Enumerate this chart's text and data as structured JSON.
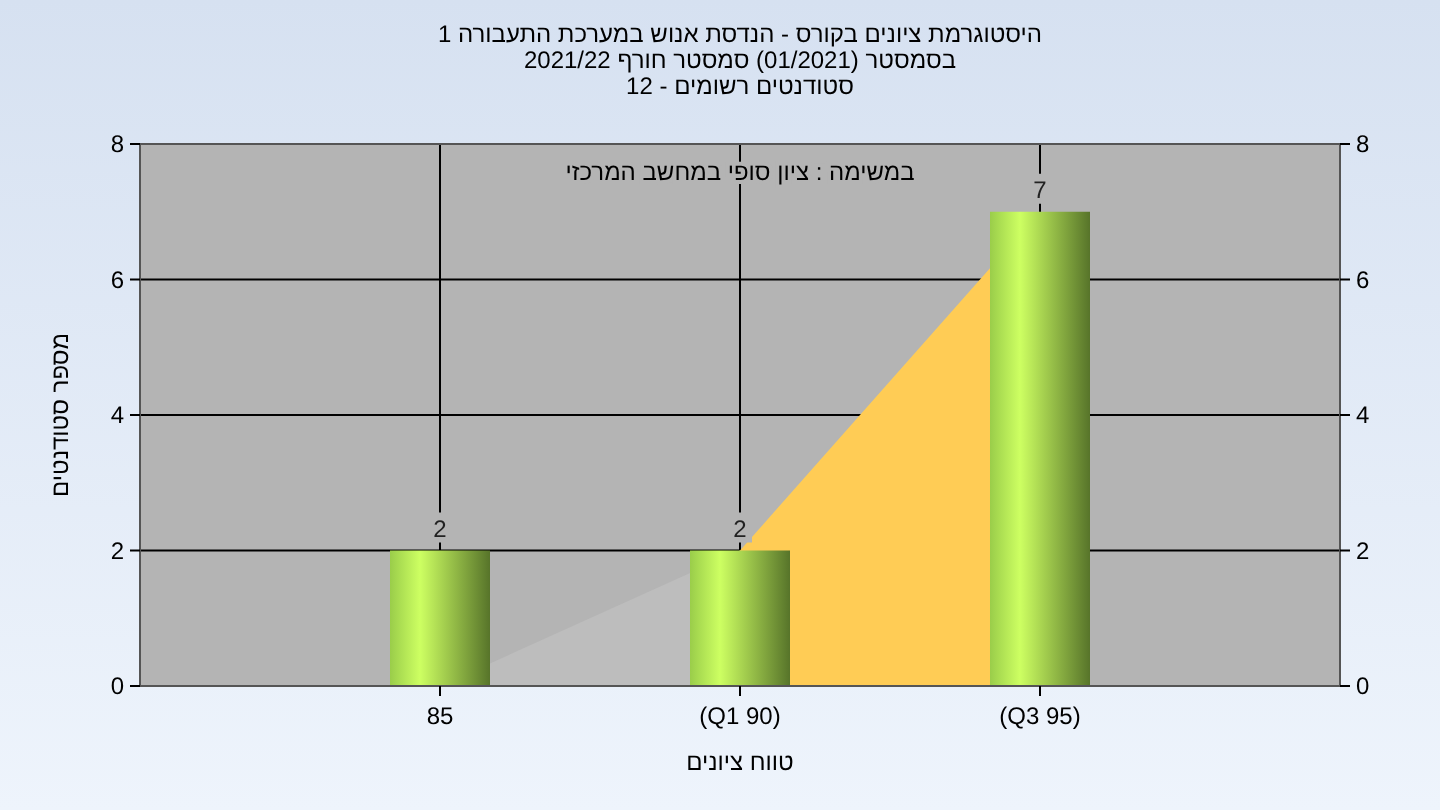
{
  "chart_data": {
    "type": "bar",
    "title": "היסטוגרמת ציונים בקורס - הנדסת אנוש במערכת התעבורה 1\nבסמסטר  (01/2021)  סמסטר חורף 2021/22\nסטודנטים רשומים - 12",
    "xlabel": "טווח ציונים",
    "ylabel": "מספר סטודנטים",
    "annotations": [
      "במשימה : ציון סופי במחשב המרכזי"
    ],
    "categories": [
      "85",
      "(Q1 90)",
      "(Q3 95)"
    ],
    "series": [
      {
        "type": "area",
        "color": "#bdbdbd",
        "values": [
          0,
          2,
          null
        ]
      },
      {
        "type": "area",
        "color": "#ffcc55",
        "values": [
          null,
          2,
          7
        ]
      },
      {
        "color": "#9acd4a",
        "values": [
          2,
          2,
          7
        ],
        "value_labels": [
          "2",
          "2",
          "7"
        ]
      }
    ],
    "ylim": [
      0,
      8
    ],
    "yticks": [
      0,
      2,
      4,
      6,
      8
    ],
    "y2lim": [
      0,
      8
    ],
    "y2ticks": [
      0,
      2,
      4,
      6,
      8
    ],
    "grid": true
  }
}
